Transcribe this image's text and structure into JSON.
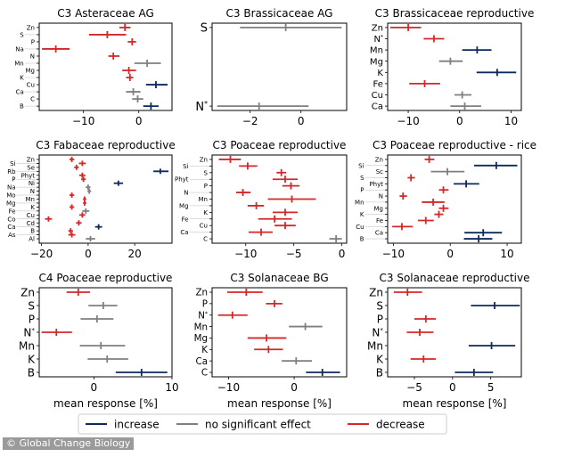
{
  "colors": {
    "increase": "#0e2a5c",
    "no_significant_effect": "#7f7f7f",
    "decrease": "#d62728"
  },
  "legend": {
    "placement": "bottom-center",
    "items": [
      {
        "key": "increase",
        "label": "increase"
      },
      {
        "key": "no_significant_effect",
        "label": "no significant effect"
      },
      {
        "key": "decrease",
        "label": "decrease"
      }
    ]
  },
  "watermark": "© Global Change Biology",
  "chart_data": [
    {
      "type": "errorbar",
      "title": "C3 Asteraceae AG",
      "xlabel": "",
      "xlim": [
        -18,
        6
      ],
      "xticks": [
        -10,
        0
      ],
      "rows": [
        {
          "label": "Zn",
          "mean": -2.5,
          "low": -3.5,
          "high": -1.5,
          "effect": "decrease"
        },
        {
          "label": "S",
          "mean": -5.7,
          "low": -9,
          "high": -2.3,
          "effect": "decrease"
        },
        {
          "label": "P",
          "mean": -1.2,
          "low": -2,
          "high": -0.5,
          "effect": "decrease"
        },
        {
          "label": "Na",
          "mean": -15,
          "low": -17.5,
          "high": -12.5,
          "effect": "decrease"
        },
        {
          "label": "N",
          "mean": -4.6,
          "low": -5.5,
          "high": -3.5,
          "effect": "decrease"
        },
        {
          "label": "Mn",
          "mean": 1.5,
          "low": -0.8,
          "high": 4,
          "effect": "no_significant_effect"
        },
        {
          "label": "Mg",
          "mean": -1.8,
          "low": -3,
          "high": -0.5,
          "effect": "decrease"
        },
        {
          "label": "K",
          "mean": -1.6,
          "low": -2.3,
          "high": -1,
          "effect": "decrease"
        },
        {
          "label": "Cu",
          "mean": 3.1,
          "low": 1.3,
          "high": 5.2,
          "effect": "increase"
        },
        {
          "label": "Ca",
          "mean": -1,
          "low": -2.3,
          "high": 0.3,
          "effect": "no_significant_effect"
        },
        {
          "label": "C",
          "mean": -0.2,
          "low": -1.2,
          "high": 0.8,
          "effect": "no_significant_effect"
        },
        {
          "label": "B",
          "mean": 2.2,
          "low": 0.8,
          "high": 3.6,
          "effect": "increase"
        }
      ]
    },
    {
      "type": "errorbar",
      "title": "C3 Brassicaceae AG",
      "xlabel": "",
      "xlim": [
        -3.5,
        1.8
      ],
      "xticks": [
        -2,
        0
      ],
      "rows": [
        {
          "label": "S",
          "mean": -0.6,
          "low": -2.4,
          "high": 1.6,
          "effect": "no_significant_effect"
        },
        {
          "label": "N*",
          "mean": -1.65,
          "low": -3.3,
          "high": 0.3,
          "effect": "no_significant_effect"
        }
      ]
    },
    {
      "type": "errorbar",
      "title": "C3 Brassicaceae reproductive",
      "xlabel": "",
      "xlim": [
        -14,
        12
      ],
      "xticks": [
        -10,
        0,
        10
      ],
      "rows": [
        {
          "label": "Zn",
          "mean": -10,
          "low": -13.5,
          "high": -7.5,
          "effect": "decrease"
        },
        {
          "label": "N*",
          "mean": -5,
          "low": -7,
          "high": -3,
          "effect": "decrease"
        },
        {
          "label": "Mn",
          "mean": 3.4,
          "low": 0.5,
          "high": 6.2,
          "effect": "increase"
        },
        {
          "label": "Mg",
          "mean": -1.8,
          "low": -4,
          "high": 0.6,
          "effect": "no_significant_effect"
        },
        {
          "label": "K",
          "mean": 7.3,
          "low": 3.3,
          "high": 11,
          "effect": "increase"
        },
        {
          "label": "Fe",
          "mean": -6.8,
          "low": -9.8,
          "high": -3.8,
          "effect": "decrease"
        },
        {
          "label": "Cu",
          "mean": 0.5,
          "low": -1,
          "high": 2.3,
          "effect": "no_significant_effect"
        },
        {
          "label": "Ca",
          "mean": 1,
          "low": -1.8,
          "high": 4.2,
          "effect": "no_significant_effect"
        }
      ]
    },
    {
      "type": "errorbar",
      "title": "C3 Fabaceae reproductive",
      "xlabel": "",
      "xlim": [
        -21,
        36
      ],
      "xticks": [
        -20,
        0,
        20
      ],
      "rows": [
        {
          "label": "Zn",
          "mean": -7,
          "low": -8,
          "high": -6,
          "effect": "decrease"
        },
        {
          "label": "Si",
          "mean": -2.5,
          "low": -4,
          "high": -1,
          "effect": "decrease"
        },
        {
          "label": "Se",
          "mean": -5,
          "low": -6,
          "high": -4,
          "effect": "decrease"
        },
        {
          "label": "Rb",
          "mean": 31,
          "low": 28,
          "high": 34.5,
          "effect": "increase"
        },
        {
          "label": "Phyt",
          "mean": -2.5,
          "low": -3.8,
          "high": -1.2,
          "effect": "decrease"
        },
        {
          "label": "P",
          "mean": -2,
          "low": -3,
          "high": -1,
          "effect": "decrease"
        },
        {
          "label": "Ni",
          "mean": 13,
          "low": 11,
          "high": 15,
          "effect": "increase"
        },
        {
          "label": "Na",
          "mean": 0,
          "low": -1,
          "high": 1,
          "effect": "no_significant_effect"
        },
        {
          "label": "N",
          "mean": 0.5,
          "low": -0.3,
          "high": 1.3,
          "effect": "no_significant_effect"
        },
        {
          "label": "Mo",
          "mean": -7,
          "low": -8,
          "high": -6,
          "effect": "decrease"
        },
        {
          "label": "Mn",
          "mean": -1.5,
          "low": -2.2,
          "high": -0.8,
          "effect": "decrease"
        },
        {
          "label": "Mg",
          "mean": -1.5,
          "low": -2.2,
          "high": -0.8,
          "effect": "decrease"
        },
        {
          "label": "K",
          "mean": -7,
          "low": -8,
          "high": -6,
          "effect": "decrease"
        },
        {
          "label": "Fe",
          "mean": -1,
          "low": -2.5,
          "high": 0.5,
          "effect": "no_significant_effect"
        },
        {
          "label": "Cu",
          "mean": -2.5,
          "low": -3.8,
          "high": -1.2,
          "effect": "decrease"
        },
        {
          "label": "Co",
          "mean": -17,
          "low": -18.5,
          "high": -15.5,
          "effect": "decrease"
        },
        {
          "label": "Cd",
          "mean": -4,
          "low": -5.2,
          "high": -2.8,
          "effect": "decrease"
        },
        {
          "label": "Ca",
          "mean": 4.5,
          "low": 3,
          "high": 6,
          "effect": "increase"
        },
        {
          "label": "B",
          "mean": -7.5,
          "low": -8.5,
          "high": -6.5,
          "effect": "decrease"
        },
        {
          "label": "As",
          "mean": -7,
          "low": -8.5,
          "high": -5.5,
          "effect": "decrease"
        },
        {
          "label": "Al",
          "mean": 1,
          "low": -1,
          "high": 3,
          "effect": "no_significant_effect"
        }
      ]
    },
    {
      "type": "errorbar",
      "title": "C3 Poaceae reproductive",
      "xlabel": "",
      "xlim": [
        -13.5,
        0.5
      ],
      "xticks": [
        -10,
        -5,
        0
      ],
      "rows": [
        {
          "label": "Zn",
          "mean": -11.6,
          "low": -12.8,
          "high": -10.5,
          "effect": "decrease"
        },
        {
          "label": "Si",
          "mean": -9.8,
          "low": -10.7,
          "high": -8.8,
          "effect": "decrease"
        },
        {
          "label": "S",
          "mean": -6.3,
          "low": -6.8,
          "high": -5.8,
          "effect": "decrease"
        },
        {
          "label": "Phyt",
          "mean": -5.9,
          "low": -7.2,
          "high": -4.6,
          "effect": "decrease"
        },
        {
          "label": "P",
          "mean": -5.3,
          "low": -6.2,
          "high": -4.4,
          "effect": "decrease"
        },
        {
          "label": "N",
          "mean": -10.3,
          "low": -11,
          "high": -9.5,
          "effect": "decrease"
        },
        {
          "label": "Mn",
          "mean": -5.2,
          "low": -7.7,
          "high": -2.7,
          "effect": "decrease"
        },
        {
          "label": "Mg",
          "mean": -8.9,
          "low": -9.8,
          "high": -8.1,
          "effect": "decrease"
        },
        {
          "label": "K",
          "mean": -5.9,
          "low": -7.2,
          "high": -4.6,
          "effect": "decrease"
        },
        {
          "label": "Fe",
          "mean": -7,
          "low": -8.7,
          "high": -5.2,
          "effect": "decrease"
        },
        {
          "label": "Cu",
          "mean": -5.9,
          "low": -7,
          "high": -4.8,
          "effect": "decrease"
        },
        {
          "label": "Ca",
          "mean": -8.4,
          "low": -9.7,
          "high": -7.2,
          "effect": "decrease"
        },
        {
          "label": "C",
          "mean": -0.6,
          "low": -1.3,
          "high": 0,
          "effect": "no_significant_effect"
        }
      ]
    },
    {
      "type": "errorbar",
      "title": "C3 Poaceae reproductive - rice",
      "xlabel": "",
      "xlim": [
        -11,
        12.5
      ],
      "xticks": [
        -10,
        0,
        10
      ],
      "rows": [
        {
          "label": "Zn",
          "mean": -3.7,
          "low": -4.5,
          "high": -2.8,
          "effect": "decrease"
        },
        {
          "label": "Si",
          "mean": 8.1,
          "low": 4.2,
          "high": 11.8,
          "effect": "increase"
        },
        {
          "label": "Sc",
          "mean": -0.5,
          "low": -3.4,
          "high": 2.5,
          "effect": "no_significant_effect"
        },
        {
          "label": "S",
          "mean": -6.9,
          "low": -7.5,
          "high": -6.2,
          "effect": "decrease"
        },
        {
          "label": "Phyt",
          "mean": 2.8,
          "low": 0.6,
          "high": 5.1,
          "effect": "increase"
        },
        {
          "label": "P",
          "mean": -1.2,
          "low": -2,
          "high": -0.3,
          "effect": "decrease"
        },
        {
          "label": "N",
          "mean": -8.3,
          "low": -8.9,
          "high": -7.6,
          "effect": "decrease"
        },
        {
          "label": "Mn",
          "mean": -3,
          "low": -5,
          "high": -1,
          "effect": "decrease"
        },
        {
          "label": "Mg",
          "mean": -1.2,
          "low": -2,
          "high": -0.3,
          "effect": "decrease"
        },
        {
          "label": "K",
          "mean": -2,
          "low": -2.8,
          "high": -1.2,
          "effect": "decrease"
        },
        {
          "label": "Fe",
          "mean": -4.3,
          "low": -5.7,
          "high": -2.9,
          "effect": "decrease"
        },
        {
          "label": "Cu",
          "mean": -8.5,
          "low": -10.2,
          "high": -6.6,
          "effect": "decrease"
        },
        {
          "label": "Ca",
          "mean": 5.8,
          "low": 2.5,
          "high": 9.1,
          "effect": "increase"
        },
        {
          "label": "B",
          "mean": 5,
          "low": 2.4,
          "high": 7.4,
          "effect": "increase"
        }
      ]
    },
    {
      "type": "errorbar",
      "title": "C4 Poaceae reproductive",
      "xlabel": "mean response [%]",
      "xlim": [
        -7,
        10
      ],
      "xticks": [
        0,
        10
      ],
      "rows": [
        {
          "label": "Zn",
          "mean": -2,
          "low": -3.5,
          "high": -0.5,
          "effect": "decrease"
        },
        {
          "label": "S",
          "mean": 1.2,
          "low": -0.7,
          "high": 3,
          "effect": "no_significant_effect"
        },
        {
          "label": "P",
          "mean": 0.4,
          "low": -1.7,
          "high": 2.5,
          "effect": "no_significant_effect"
        },
        {
          "label": "N*",
          "mean": -4.8,
          "low": -6.7,
          "high": -2.8,
          "effect": "decrease"
        },
        {
          "label": "Mn",
          "mean": 0.9,
          "low": -1.8,
          "high": 4,
          "effect": "no_significant_effect"
        },
        {
          "label": "K",
          "mean": 1.7,
          "low": -0.8,
          "high": 4.4,
          "effect": "no_significant_effect"
        },
        {
          "label": "B",
          "mean": 6.1,
          "low": 2.8,
          "high": 9.4,
          "effect": "increase"
        }
      ]
    },
    {
      "type": "errorbar",
      "title": "C3 Solanaceae BG",
      "xlabel": "mean response [%]",
      "xlim": [
        -12.5,
        8
      ],
      "xticks": [
        -10,
        0
      ],
      "rows": [
        {
          "label": "Zn",
          "mean": -7.3,
          "low": -10.2,
          "high": -4.8,
          "effect": "decrease"
        },
        {
          "label": "P",
          "mean": -3,
          "low": -4.3,
          "high": -1.8,
          "effect": "decrease"
        },
        {
          "label": "N*",
          "mean": -9.4,
          "low": -11.6,
          "high": -7.1,
          "effect": "decrease"
        },
        {
          "label": "Mn",
          "mean": 1.7,
          "low": -0.8,
          "high": 4.3,
          "effect": "no_significant_effect"
        },
        {
          "label": "Mg",
          "mean": -4.2,
          "low": -7.1,
          "high": -1.2,
          "effect": "decrease"
        },
        {
          "label": "K",
          "mean": -3.9,
          "low": -6.1,
          "high": -1.7,
          "effect": "decrease"
        },
        {
          "label": "Ca",
          "mean": 0.3,
          "low": -1.9,
          "high": 2.7,
          "effect": "no_significant_effect"
        },
        {
          "label": "C",
          "mean": 4.3,
          "low": 1.8,
          "high": 7,
          "effect": "increase"
        }
      ]
    },
    {
      "type": "errorbar",
      "title": "C3 Solanaceae reproductive",
      "xlabel": "mean response [%]",
      "xlim": [
        -8.5,
        9
      ],
      "xticks": [
        -5,
        0,
        5
      ],
      "rows": [
        {
          "label": "Zn",
          "mean": -5.9,
          "low": -7.7,
          "high": -4,
          "effect": "decrease"
        },
        {
          "label": "S",
          "mean": 5.5,
          "low": 2.4,
          "high": 8.8,
          "effect": "increase"
        },
        {
          "label": "P",
          "mean": -3.5,
          "low": -5,
          "high": -2.2,
          "effect": "decrease"
        },
        {
          "label": "N*",
          "mean": -4.3,
          "low": -6,
          "high": -2.5,
          "effect": "decrease"
        },
        {
          "label": "Mn",
          "mean": 5.1,
          "low": 2.1,
          "high": 8.2,
          "effect": "increase"
        },
        {
          "label": "K",
          "mean": -3.8,
          "low": -5.5,
          "high": -2.2,
          "effect": "decrease"
        },
        {
          "label": "B",
          "mean": 2.8,
          "low": 0.3,
          "high": 5.3,
          "effect": "increase"
        }
      ]
    }
  ]
}
